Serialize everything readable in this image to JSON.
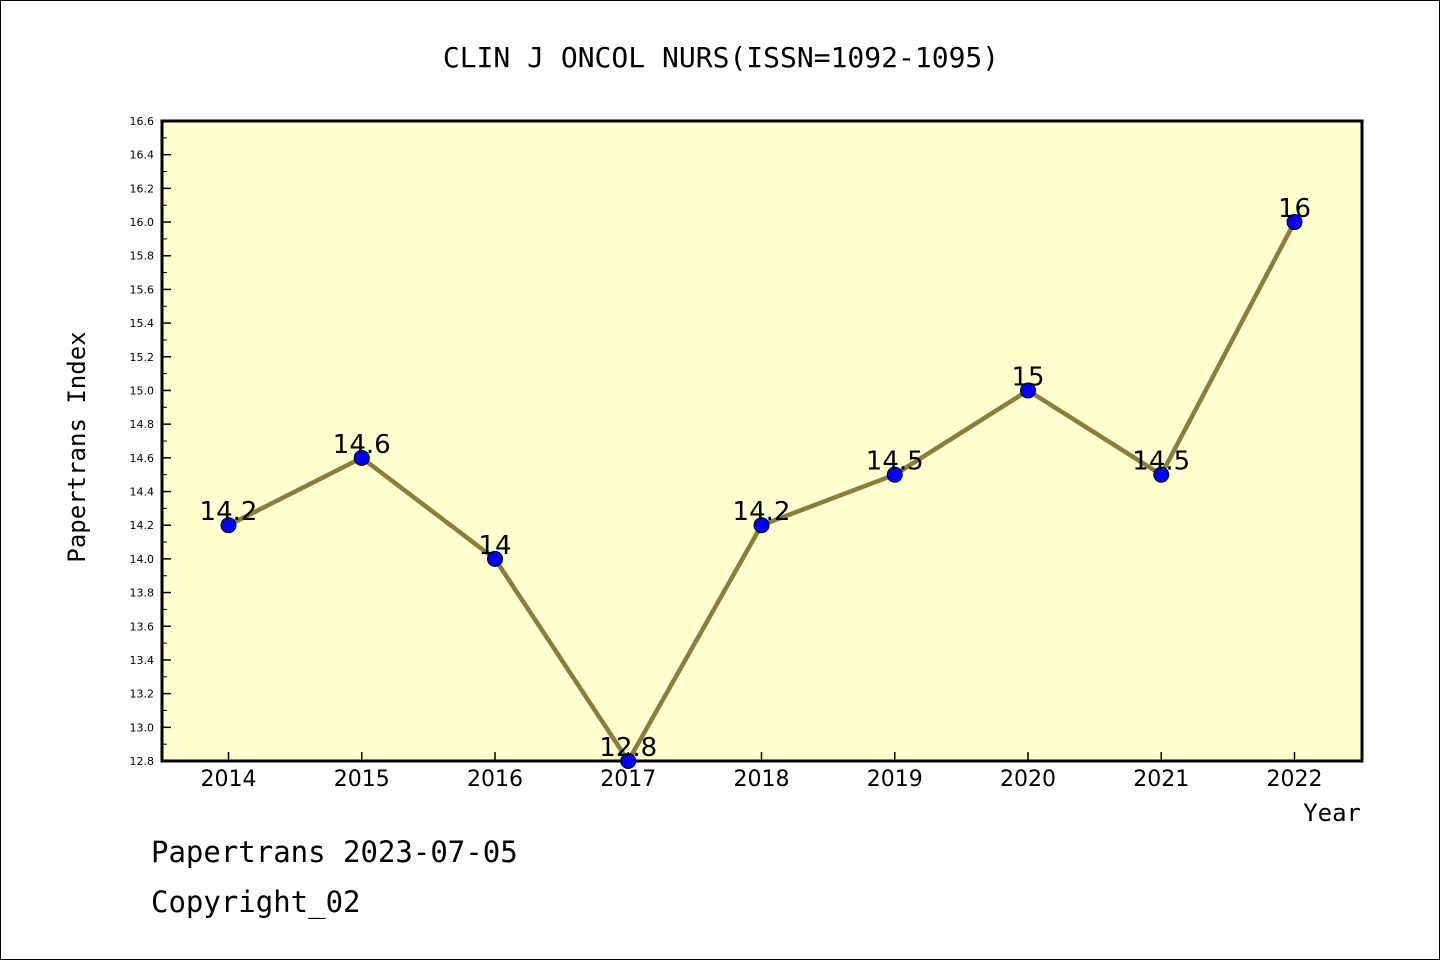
{
  "colors": {
    "plot_background": "#ffffd0",
    "line": "#8b7d3a",
    "marker": "#0000ff",
    "frame": "#000000"
  },
  "chart_data": {
    "type": "line",
    "title": "CLIN J ONCOL NURS(ISSN=1092-1095)",
    "xlabel": "Year",
    "ylabel": "Papertrans Index",
    "categories": [
      "2014",
      "2015",
      "2016",
      "2017",
      "2018",
      "2019",
      "2020",
      "2021",
      "2022"
    ],
    "values": [
      14.2,
      14.6,
      14.0,
      12.8,
      14.2,
      14.5,
      15.0,
      14.5,
      16.0
    ],
    "data_labels": [
      "14.2",
      "14.6",
      "14",
      "12.8",
      "14.2",
      "14.5",
      "15",
      "14.5",
      "16"
    ],
    "ylim": [
      12.8,
      16.6
    ],
    "yticks": [
      "12.8",
      "13.0",
      "13.2",
      "13.4",
      "13.6",
      "13.8",
      "14.0",
      "14.2",
      "14.4",
      "14.6",
      "14.8",
      "15.0",
      "15.2",
      "15.4",
      "15.6",
      "15.8",
      "16.0",
      "16.2",
      "16.4",
      "16.6"
    ],
    "grid": false,
    "legend": "none"
  },
  "footer": {
    "line1": "Papertrans 2023-07-05",
    "line2": "Copyright_02"
  }
}
